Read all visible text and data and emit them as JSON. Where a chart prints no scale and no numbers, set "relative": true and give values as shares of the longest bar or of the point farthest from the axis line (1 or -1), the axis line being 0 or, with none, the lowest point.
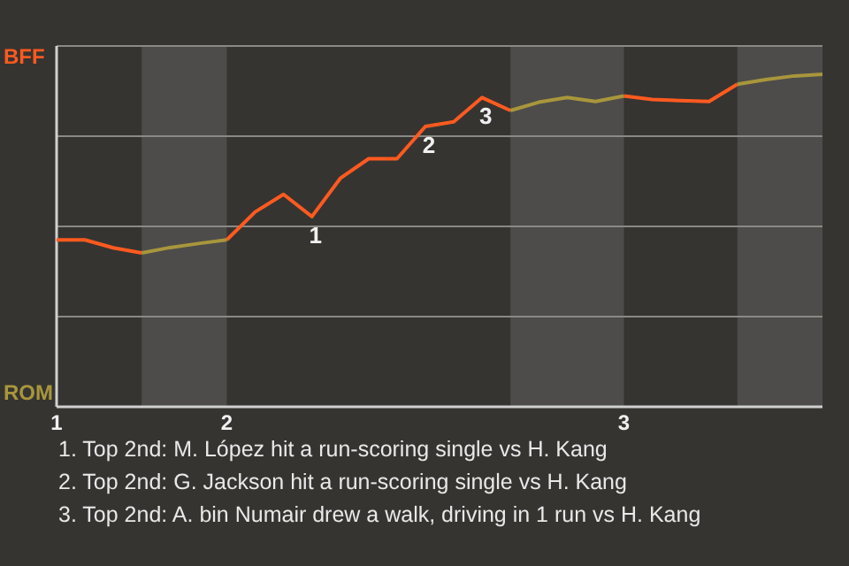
{
  "chart_data": {
    "type": "line",
    "relative": true,
    "categories": [
      "1",
      null,
      null,
      null,
      null,
      null,
      "2",
      null,
      null,
      null,
      null,
      null,
      null,
      null,
      null,
      null,
      null,
      null,
      null,
      null,
      "3",
      null,
      null,
      null,
      null,
      null,
      null,
      null
    ],
    "grid": "y",
    "legend": "left",
    "marker": "none",
    "line_style": "solid",
    "series": [
      {
        "name": "BFF",
        "color": "#ff5a1f",
        "values": [
          0.502,
          0.502,
          0.478,
          0.463,
          null,
          null,
          0.502,
          0.586,
          0.639,
          0.572,
          0.687,
          0.746,
          0.746,
          0.843,
          0.857,
          0.93,
          0.891,
          null,
          null,
          null,
          0.935,
          0.924,
          0.921,
          0.918,
          0.97,
          null,
          null,
          null
        ]
      },
      {
        "name": "ROM",
        "color": "#a8963c",
        "values": [
          null,
          null,
          null,
          0.463,
          0.479,
          0.491,
          0.502,
          null,
          null,
          null,
          null,
          null,
          null,
          null,
          null,
          null,
          0.891,
          0.916,
          0.93,
          0.918,
          0.935,
          null,
          null,
          null,
          0.97,
          0.984,
          0.995,
          1
        ]
      }
    ],
    "annotations": [
      {
        "text": "1",
        "y": 0.572
      },
      {
        "text": "2",
        "y": 0.843
      },
      {
        "text": "3",
        "y": 0.93
      },
      "1. Top 2nd: M. López hit a run-scoring single vs H. Kang",
      "2. Top 2nd: G. Jackson hit a run-scoring single vs H. Kang",
      "3. Top 2nd: A. bin Numair drew a walk, driving in 1 run vs H. Kang"
    ]
  }
}
